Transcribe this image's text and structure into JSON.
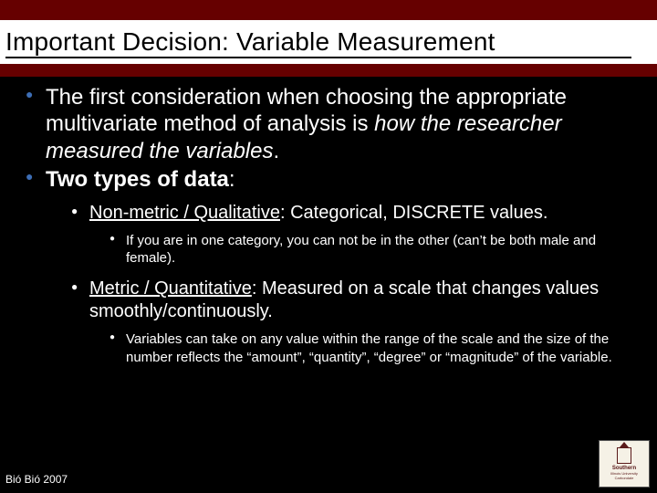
{
  "colors": {
    "brand_maroon": "#660000",
    "background": "#000000",
    "title_bg": "#ffffff",
    "text_light": "#ffffff",
    "text_dark": "#000000",
    "bullet_blue": "#3d6eb5"
  },
  "title": "Important Decision: Variable Measurement",
  "bullets": {
    "b1_a": "The first consideration when choosing the appropriate multivariate method of analysis is ",
    "b1_b": "how the researcher measured the variables",
    "b1_c": ".",
    "b2_a": "Two types of data",
    "b2_b": ":",
    "sub1_a": "Non-metric / Qualitative",
    "sub1_b": ":  Categorical, DISCRETE values.",
    "sub1_detail": "If you are in one category, you can not be in the other (can’t be both male and female).",
    "sub2_a": "Metric / Quantitative",
    "sub2_b": ":  Measured on a scale that changes values smoothly/continuously.",
    "sub2_detail": "Variables can take on any value within the range of the scale and the size of the number reflects the “amount”, “quantity”, “degree” or “magnitude” of the variable."
  },
  "footer": "Bió Bió 2007",
  "logo": {
    "line1": "Southern",
    "line2": "Illinois University",
    "line3": "Carbondale"
  }
}
